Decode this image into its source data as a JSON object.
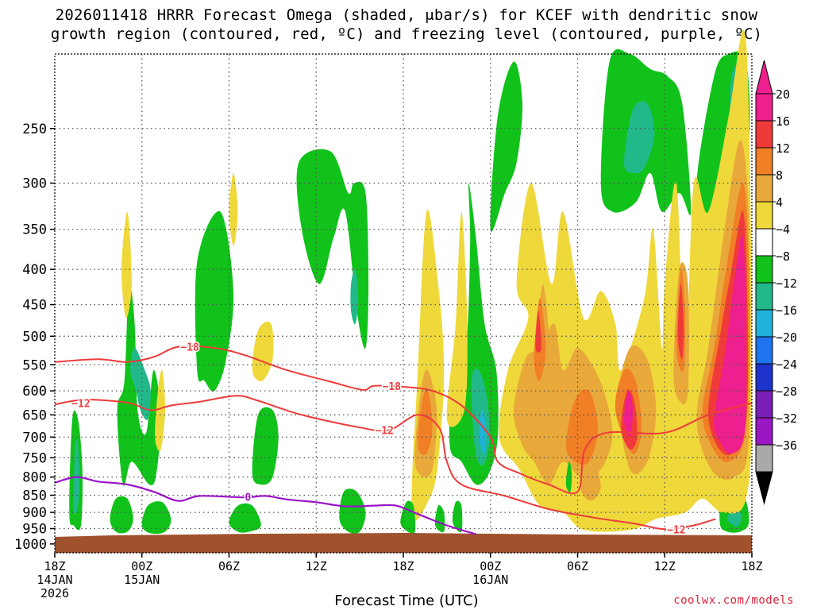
{
  "chart_data": {
    "type": "heatmap",
    "title_line1": "2026011418 HRRR Forecast Omega (shaded, μbar/s) for KCEF with dendritic snow",
    "title_line2": "growth region (contoured, red, ºC) and freezing level (contoured, purple, ºC)",
    "xlabel": "Forecast Time (UTC)",
    "credit": "coolwx.com/models",
    "x_range_hours": [
      0,
      48
    ],
    "y_scale": "log-pressure",
    "y_range_hpa": [
      1030,
      195
    ],
    "y_ticks": [
      {
        "p": 250,
        "label": "250"
      },
      {
        "p": 300,
        "label": "300"
      },
      {
        "p": 350,
        "label": "350"
      },
      {
        "p": 400,
        "label": "400"
      },
      {
        "p": 450,
        "label": "450"
      },
      {
        "p": 500,
        "label": "500"
      },
      {
        "p": 550,
        "label": "550"
      },
      {
        "p": 600,
        "label": "600"
      },
      {
        "p": 650,
        "label": "650"
      },
      {
        "p": 700,
        "label": "700"
      },
      {
        "p": 750,
        "label": "750"
      },
      {
        "p": 800,
        "label": "800"
      },
      {
        "p": 850,
        "label": "850"
      },
      {
        "p": 900,
        "label": "900"
      },
      {
        "p": 950,
        "label": "950"
      },
      {
        "p": 1000,
        "label": "1000"
      }
    ],
    "x_ticks": [
      {
        "h": 0,
        "line1": "18Z",
        "line2": "14JAN",
        "line3": "2026"
      },
      {
        "h": 6,
        "line1": "00Z",
        "line2": "15JAN",
        "line3": ""
      },
      {
        "h": 12,
        "line1": "06Z",
        "line2": "",
        "line3": ""
      },
      {
        "h": 18,
        "line1": "12Z",
        "line2": "",
        "line3": ""
      },
      {
        "h": 24,
        "line1": "18Z",
        "line2": "",
        "line3": ""
      },
      {
        "h": 30,
        "line1": "00Z",
        "line2": "16JAN",
        "line3": ""
      },
      {
        "h": 36,
        "line1": "06Z",
        "line2": "",
        "line3": ""
      },
      {
        "h": 42,
        "line1": "12Z",
        "line2": "",
        "line3": ""
      },
      {
        "h": 48,
        "line1": "18Z",
        "line2": "",
        "line3": ""
      }
    ],
    "colorbar": {
      "levels": [
        20,
        16,
        12,
        8,
        4,
        -4,
        -8,
        -12,
        -16,
        -20,
        -24,
        -28,
        -32,
        -36
      ],
      "labels": [
        "20",
        "16",
        "12",
        "8",
        "4",
        "−4",
        "−8",
        "−12",
        "−16",
        "−20",
        "−24",
        "−28",
        "−32",
        "−36"
      ],
      "colors": [
        "#ee1f8e",
        "#f03a3a",
        "#f07f26",
        "#e9a93a",
        "#efd83a",
        "#ffffff",
        "#10c21a",
        "#21b98a",
        "#1fb3d9",
        "#1e73ee",
        "#1e33cc",
        "#7a1fb6",
        "#9a17c4",
        "#a9a9a9"
      ],
      "top_color": "#ee1f8e",
      "bottom_color": "#000000"
    },
    "omega_regions": [
      {
        "value": -8,
        "pts": [
          [
            1.0,
            900
          ],
          [
            1.2,
            660
          ],
          [
            1.6,
            660
          ],
          [
            1.9,
            780
          ],
          [
            1.8,
            940
          ],
          [
            1.3,
            940
          ]
        ]
      },
      {
        "value": -12,
        "pts": [
          [
            1.3,
            880
          ],
          [
            1.4,
            720
          ],
          [
            1.6,
            720
          ],
          [
            1.7,
            830
          ],
          [
            1.5,
            900
          ]
        ]
      },
      {
        "value": -8,
        "pts": [
          [
            4.7,
            820
          ],
          [
            4.3,
            640
          ],
          [
            4.8,
            580
          ],
          [
            5.1,
            420
          ],
          [
            5.5,
            480
          ],
          [
            5.7,
            640
          ],
          [
            6.3,
            690
          ],
          [
            6.8,
            560
          ],
          [
            7.3,
            650
          ],
          [
            7.0,
            790
          ],
          [
            6.5,
            820
          ],
          [
            5.3,
            760
          ]
        ]
      },
      {
        "value": -12,
        "pts": [
          [
            5.6,
            600
          ],
          [
            5.2,
            560
          ],
          [
            5.5,
            520
          ],
          [
            6.2,
            560
          ],
          [
            6.6,
            600
          ],
          [
            6.4,
            660
          ],
          [
            5.9,
            640
          ]
        ]
      },
      {
        "value": -8,
        "pts": [
          [
            9.8,
            560
          ],
          [
            9.8,
            390
          ],
          [
            11.4,
            330
          ],
          [
            12.3,
            430
          ],
          [
            11.8,
            540
          ],
          [
            11.0,
            600
          ],
          [
            10.3,
            580
          ]
        ]
      },
      {
        "value": -8,
        "pts": [
          [
            13.6,
            790
          ],
          [
            14.0,
            650
          ],
          [
            15.0,
            640
          ],
          [
            15.4,
            700
          ],
          [
            15.0,
            800
          ],
          [
            14.2,
            820
          ]
        ]
      },
      {
        "value": -8,
        "pts": [
          [
            16.8,
            280
          ],
          [
            19.0,
            270
          ],
          [
            20.2,
            310
          ],
          [
            20.6,
            300
          ],
          [
            21.4,
            310
          ],
          [
            21.6,
            420
          ],
          [
            21.4,
            520
          ],
          [
            20.8,
            460
          ],
          [
            20.0,
            330
          ],
          [
            19.2,
            360
          ],
          [
            18.2,
            420
          ],
          [
            17.0,
            350
          ]
        ]
      },
      {
        "value": -12,
        "pts": [
          [
            20.4,
            420
          ],
          [
            20.7,
            400
          ],
          [
            20.9,
            440
          ],
          [
            20.7,
            480
          ],
          [
            20.4,
            460
          ]
        ]
      },
      {
        "value": -8,
        "pts": [
          [
            27.2,
            720
          ],
          [
            27.4,
            560
          ],
          [
            28.3,
            520
          ],
          [
            28.6,
            370
          ],
          [
            28.5,
            300
          ],
          [
            29.0,
            360
          ],
          [
            29.6,
            480
          ],
          [
            30.4,
            560
          ],
          [
            30.5,
            700
          ],
          [
            29.9,
            790
          ],
          [
            29.0,
            820
          ],
          [
            28.0,
            760
          ]
        ]
      },
      {
        "value": -12,
        "pts": [
          [
            28.9,
            720
          ],
          [
            28.7,
            580
          ],
          [
            29.2,
            560
          ],
          [
            29.8,
            620
          ],
          [
            29.9,
            720
          ],
          [
            29.4,
            770
          ]
        ]
      },
      {
        "value": -16,
        "pts": [
          [
            29.2,
            700
          ],
          [
            29.4,
            640
          ],
          [
            29.7,
            680
          ],
          [
            29.6,
            740
          ]
        ]
      },
      {
        "value": -8,
        "pts": [
          [
            30.0,
            350
          ],
          [
            30.5,
            240
          ],
          [
            31.6,
            200
          ],
          [
            32.2,
            230
          ],
          [
            31.8,
            280
          ],
          [
            31.0,
            310
          ]
        ]
      },
      {
        "value": -8,
        "pts": [
          [
            37.6,
            300
          ],
          [
            38.2,
            200
          ],
          [
            39.6,
            195
          ],
          [
            41.0,
            205
          ],
          [
            42.2,
            210
          ],
          [
            43.2,
            230
          ],
          [
            43.8,
            330
          ],
          [
            43.0,
            310
          ],
          [
            41.8,
            330
          ],
          [
            41.0,
            290
          ],
          [
            40.0,
            320
          ],
          [
            38.4,
            330
          ]
        ]
      },
      {
        "value": -12,
        "pts": [
          [
            39.2,
            280
          ],
          [
            39.8,
            235
          ],
          [
            40.8,
            230
          ],
          [
            41.3,
            255
          ],
          [
            40.6,
            285
          ],
          [
            39.8,
            290
          ]
        ]
      },
      {
        "value": -8,
        "pts": [
          [
            44.2,
            300
          ],
          [
            45.4,
            210
          ],
          [
            46.4,
            195
          ],
          [
            47.6,
            200
          ],
          [
            47.8,
            260
          ],
          [
            46.8,
            300
          ],
          [
            45.8,
            380
          ],
          [
            45.0,
            340
          ]
        ]
      },
      {
        "value": -12,
        "pts": [
          [
            46.6,
            210
          ],
          [
            47.4,
            200
          ],
          [
            47.5,
            250
          ],
          [
            47.0,
            280
          ],
          [
            46.5,
            250
          ]
        ]
      },
      {
        "value": -8,
        "pts": [
          [
            45.8,
            935
          ],
          [
            46.0,
            850
          ],
          [
            47.4,
            850
          ],
          [
            47.8,
            930
          ],
          [
            47.2,
            960
          ],
          [
            46.3,
            960
          ]
        ]
      },
      {
        "value": -12,
        "pts": [
          [
            46.3,
            920
          ],
          [
            46.8,
            890
          ],
          [
            47.3,
            910
          ],
          [
            47.0,
            945
          ]
        ]
      }
    ],
    "dgz_contours": [
      {
        "label": "-18",
        "pts": [
          [
            0,
            545
          ],
          [
            3,
            540
          ],
          [
            5,
            545
          ],
          [
            6.8,
            536
          ],
          [
            8.5,
            518
          ],
          [
            11,
            520
          ],
          [
            13,
            532
          ],
          [
            16,
            560
          ],
          [
            19,
            582
          ],
          [
            21.2,
            598
          ],
          [
            22,
            590
          ],
          [
            24,
            592
          ],
          [
            26,
            600
          ],
          [
            28,
            630
          ],
          [
            30,
            700
          ],
          [
            30.5,
            760
          ],
          [
            32,
            790
          ],
          [
            34,
            820
          ],
          [
            36,
            840
          ],
          [
            36.5,
            730
          ],
          [
            38,
            690
          ],
          [
            42,
            690
          ],
          [
            45,
            650
          ],
          [
            48,
            625
          ]
        ]
      },
      {
        "label": "-12",
        "pts": [
          [
            0,
            628
          ],
          [
            2,
            618
          ],
          [
            5,
            624
          ],
          [
            6.6,
            640
          ],
          [
            8,
            630
          ],
          [
            10,
            622
          ],
          [
            12.5,
            610
          ],
          [
            14,
            620
          ],
          [
            17,
            650
          ],
          [
            21,
            678
          ],
          [
            23,
            684
          ],
          [
            25,
            650
          ],
          [
            26.5,
            680
          ],
          [
            27,
            760
          ],
          [
            28,
            820
          ],
          [
            31,
            852
          ],
          [
            34,
            890
          ],
          [
            37,
            915
          ],
          [
            40,
            935
          ],
          [
            42,
            952
          ],
          [
            44,
            940
          ],
          [
            45.5,
            920
          ]
        ]
      }
    ],
    "freezing_level": {
      "label": "0",
      "pts": [
        [
          0,
          815
        ],
        [
          1.5,
          800
        ],
        [
          3,
          812
        ],
        [
          5,
          820
        ],
        [
          6.8,
          840
        ],
        [
          8.5,
          866
        ],
        [
          10,
          852
        ],
        [
          13,
          856
        ],
        [
          14.5,
          852
        ],
        [
          16,
          862
        ],
        [
          18,
          870
        ],
        [
          20,
          882
        ],
        [
          22,
          880
        ],
        [
          23.5,
          880
        ],
        [
          25,
          905
        ],
        [
          27,
          940
        ],
        [
          29,
          968
        ]
      ]
    },
    "dgz_label_points": [
      {
        "text": "−18",
        "h": 9.3,
        "p": 518
      },
      {
        "text": "−12",
        "h": 1.8,
        "p": 625
      },
      {
        "text": "−18",
        "h": 23.2,
        "p": 590
      },
      {
        "text": "−12",
        "h": 22.7,
        "p": 684
      },
      {
        "text": "−12",
        "h": 42.8,
        "p": 952
      }
    ],
    "freezing_label_point": {
      "text": "0",
      "h": 13.3,
      "p": 854
    }
  }
}
